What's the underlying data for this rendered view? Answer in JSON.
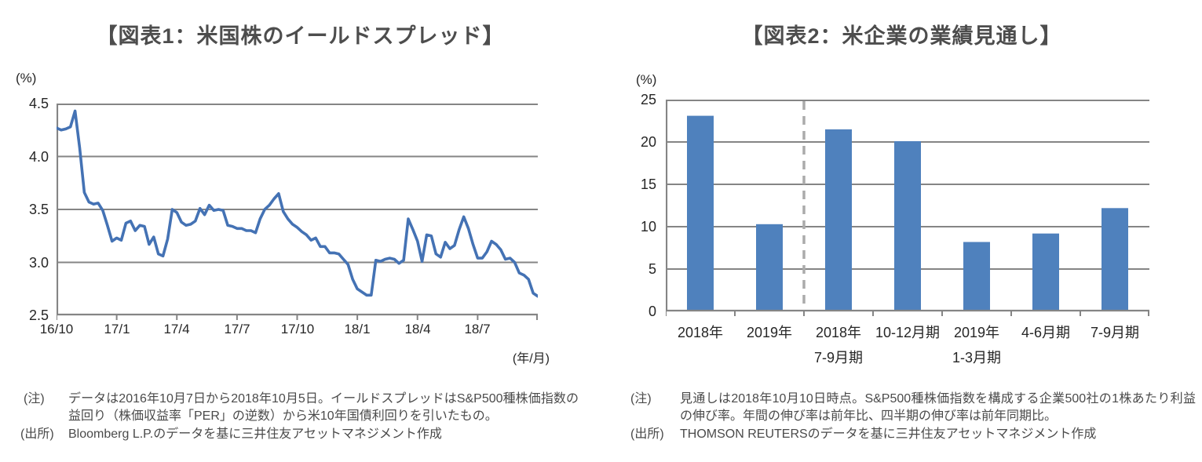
{
  "page": {
    "background": "#ffffff"
  },
  "chart_data": [
    {
      "id": "figure1",
      "type": "line",
      "title": "【図表1：米国株のイールドスプレッド】",
      "y_unit": "(%)",
      "x_unit": "(年/月)",
      "ylim": [
        2.5,
        4.5
      ],
      "ytick_labels": [
        "4.5",
        "4.0",
        "3.5",
        "3.0",
        "2.5"
      ],
      "yticks": [
        4.5,
        4.0,
        3.5,
        3.0,
        2.5
      ],
      "xtick_labels": [
        "16/10",
        "17/1",
        "17/4",
        "17/7",
        "17/10",
        "18/1",
        "18/4",
        "18/7"
      ],
      "grid": true,
      "legend": false,
      "line_color": "#4472B4",
      "axis_color": "#858585",
      "series_period": "weekly, 2016/10/7 - 2018/10/5",
      "values": [
        4.27,
        4.25,
        4.26,
        4.28,
        4.43,
        4.08,
        3.66,
        3.57,
        3.55,
        3.56,
        3.49,
        3.35,
        3.2,
        3.23,
        3.21,
        3.37,
        3.39,
        3.3,
        3.35,
        3.34,
        3.17,
        3.24,
        3.08,
        3.06,
        3.22,
        3.5,
        3.47,
        3.38,
        3.35,
        3.36,
        3.39,
        3.51,
        3.45,
        3.54,
        3.49,
        3.5,
        3.49,
        3.35,
        3.34,
        3.32,
        3.32,
        3.3,
        3.3,
        3.28,
        3.41,
        3.5,
        3.54,
        3.6,
        3.65,
        3.48,
        3.41,
        3.36,
        3.33,
        3.29,
        3.26,
        3.21,
        3.23,
        3.15,
        3.15,
        3.09,
        3.09,
        3.08,
        3.03,
        2.98,
        2.84,
        2.75,
        2.72,
        2.69,
        2.69,
        3.02,
        3.01,
        3.03,
        3.04,
        3.03,
        2.99,
        3.02,
        3.41,
        3.31,
        3.2,
        3.01,
        3.26,
        3.25,
        3.08,
        3.05,
        3.19,
        3.13,
        3.16,
        3.31,
        3.43,
        3.32,
        3.17,
        3.04,
        3.04,
        3.1,
        3.2,
        3.17,
        3.12,
        3.03,
        3.04,
        3.0,
        2.9,
        2.88,
        2.84,
        2.71,
        2.68
      ],
      "note_label": "(注)",
      "note_text": "データは2016年10月7日から2018年10月5日。イールドスプレッドはS&P500種株価指数の益回り（株価収益率「PER」の逆数）から米10年国債利回りを引いたもの。",
      "source_label": "(出所)",
      "source_text": "Bloomberg L.P.のデータを基に三井住友アセットマネジメント作成"
    },
    {
      "id": "figure2",
      "type": "bar",
      "title": "【図表2：米企業の業績見通し】",
      "y_unit": "(%)",
      "ylim": [
        0,
        25
      ],
      "ytick_labels": [
        "25",
        "20",
        "15",
        "10",
        "5",
        "0"
      ],
      "yticks": [
        25,
        20,
        15,
        10,
        5,
        0
      ],
      "categories": [
        {
          "l1": "2018年",
          "l2": ""
        },
        {
          "l1": "2019年",
          "l2": ""
        },
        {
          "l1": "2018年",
          "l2": "7-9月期"
        },
        {
          "l1": "10-12月期",
          "l2": ""
        },
        {
          "l1": "2019年",
          "l2": "1-3月期"
        },
        {
          "l1": "4-6月期",
          "l2": ""
        },
        {
          "l1": "7-9月期",
          "l2": ""
        }
      ],
      "values": [
        23.0,
        10.2,
        21.4,
        20.0,
        8.1,
        9.1,
        12.1
      ],
      "grid": true,
      "legend": false,
      "bar_color": "#4F81BD",
      "axis_color": "#858585",
      "divider_after_index": 1,
      "divider_color": "#ABABAB",
      "note_label": "(注)",
      "note_text": "見通しは2018年10月10日時点。S&P500種株価指数を構成する企業500社の1株あたり利益の伸び率。年間の伸び率は前年比、四半期の伸び率は前年同期比。",
      "source_label": "(出所)",
      "source_text": "THOMSON REUTERSのデータを基に三井住友アセットマネジメント作成"
    }
  ]
}
